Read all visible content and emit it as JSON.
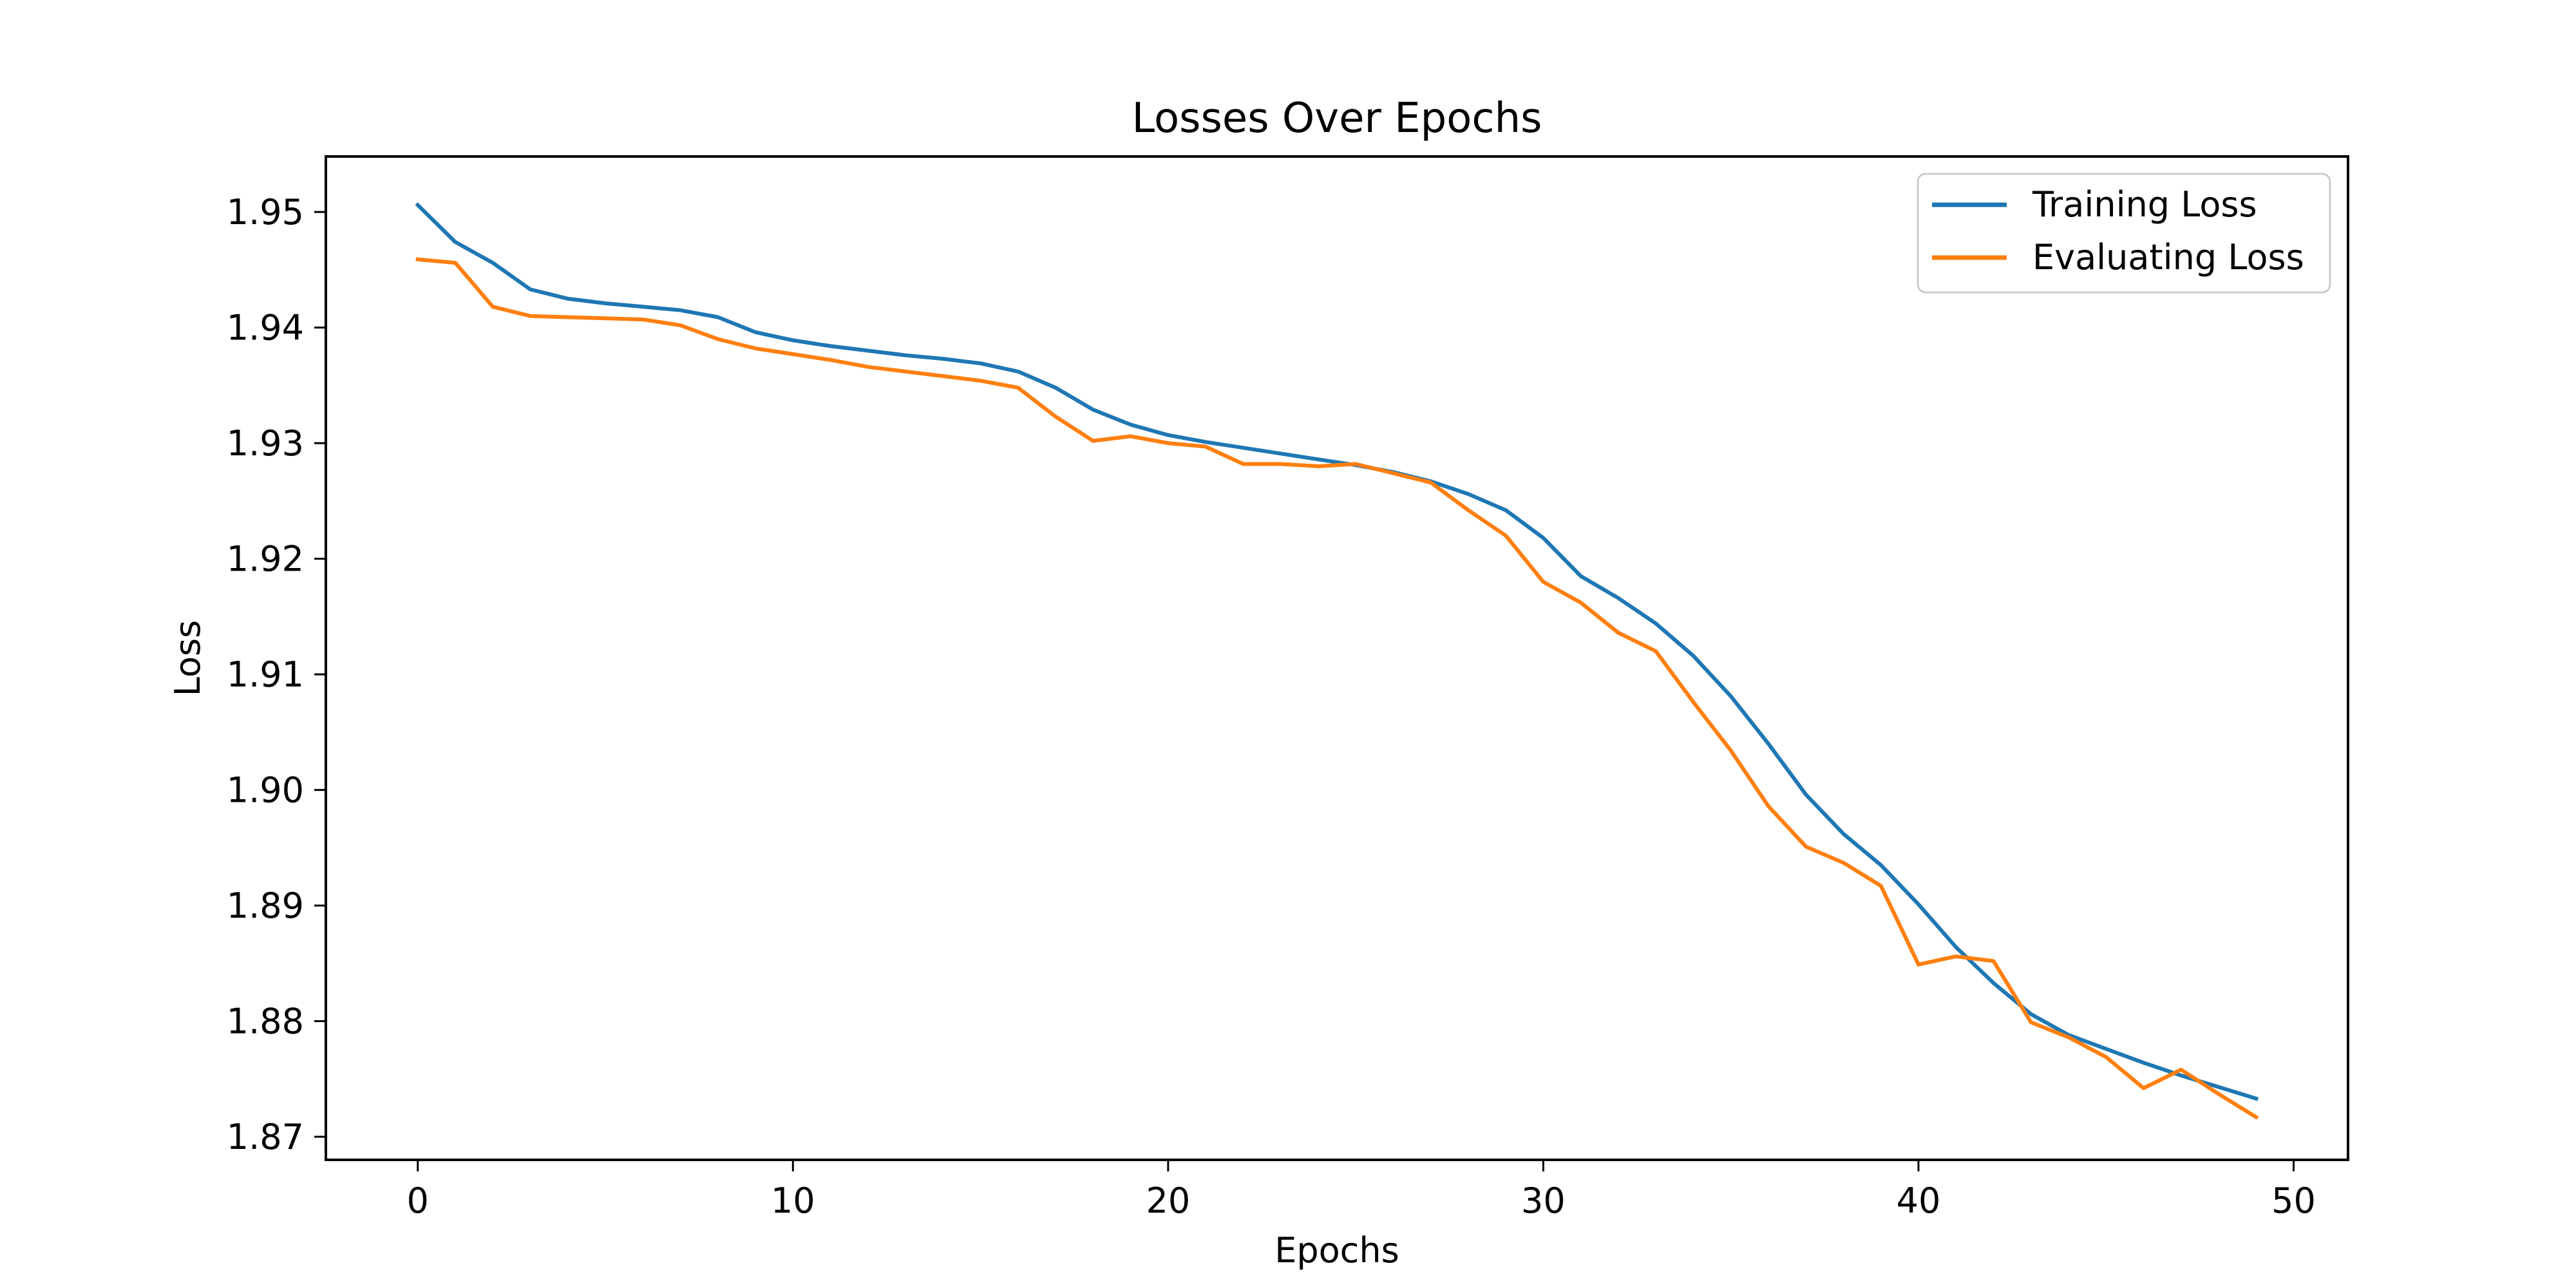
{
  "chart_data": {
    "type": "line",
    "title": "Losses Over Epochs",
    "xlabel": "Epochs",
    "ylabel": "Loss",
    "xlim": [
      -2.45,
      51.45
    ],
    "ylim": [
      1.868,
      1.9548
    ],
    "xticks": [
      0,
      10,
      20,
      30,
      40,
      50
    ],
    "xtick_labels": [
      "0",
      "10",
      "20",
      "30",
      "40",
      "50"
    ],
    "yticks": [
      1.87,
      1.88,
      1.89,
      1.9,
      1.91,
      1.92,
      1.93,
      1.94,
      1.95
    ],
    "ytick_labels": [
      "1.87",
      "1.88",
      "1.89",
      "1.90",
      "1.91",
      "1.92",
      "1.93",
      "1.94",
      "1.95"
    ],
    "grid": false,
    "legend_position": "top-right",
    "x": [
      0,
      1,
      2,
      3,
      4,
      5,
      6,
      7,
      8,
      9,
      10,
      11,
      12,
      13,
      14,
      15,
      16,
      17,
      18,
      19,
      20,
      21,
      22,
      23,
      24,
      25,
      26,
      27,
      28,
      29,
      30,
      31,
      32,
      33,
      34,
      35,
      36,
      37,
      38,
      39,
      40,
      41,
      42,
      43,
      44,
      45,
      46,
      47,
      48,
      49
    ],
    "series": [
      {
        "name": "Training Loss",
        "color": "#1f77b4",
        "values": [
          1.9506,
          1.9474,
          1.9456,
          1.9433,
          1.9425,
          1.9421,
          1.9418,
          1.9415,
          1.9409,
          1.9396,
          1.9389,
          1.9384,
          1.938,
          1.9376,
          1.9373,
          1.9369,
          1.9362,
          1.9348,
          1.9329,
          1.9316,
          1.9307,
          1.9301,
          1.9296,
          1.9291,
          1.9286,
          1.9281,
          1.9275,
          1.9267,
          1.9256,
          1.9242,
          1.9218,
          1.9185,
          1.9166,
          1.9144,
          1.9116,
          1.9081,
          1.904,
          1.8996,
          1.8962,
          1.8935,
          1.8901,
          1.8864,
          1.8833,
          1.8806,
          1.8788,
          1.8776,
          1.8764,
          1.8753,
          1.8743,
          1.8733
        ]
      },
      {
        "name": "Evaluating Loss",
        "color": "#ff7f0e",
        "values": [
          1.9459,
          1.9456,
          1.9418,
          1.941,
          1.9409,
          1.9408,
          1.9407,
          1.9402,
          1.939,
          1.9382,
          1.9377,
          1.9372,
          1.9366,
          1.9362,
          1.9358,
          1.9354,
          1.9348,
          1.9323,
          1.9302,
          1.9306,
          1.93,
          1.9297,
          1.9282,
          1.9282,
          1.928,
          1.9282,
          1.9274,
          1.9266,
          1.9242,
          1.922,
          1.918,
          1.9162,
          1.9136,
          1.912,
          1.9076,
          1.9034,
          1.8986,
          1.8951,
          1.8937,
          1.8917,
          1.8849,
          1.8856,
          1.8852,
          1.8799,
          1.8786,
          1.8769,
          1.8742,
          1.8758,
          1.8737,
          1.8717
        ]
      }
    ]
  }
}
